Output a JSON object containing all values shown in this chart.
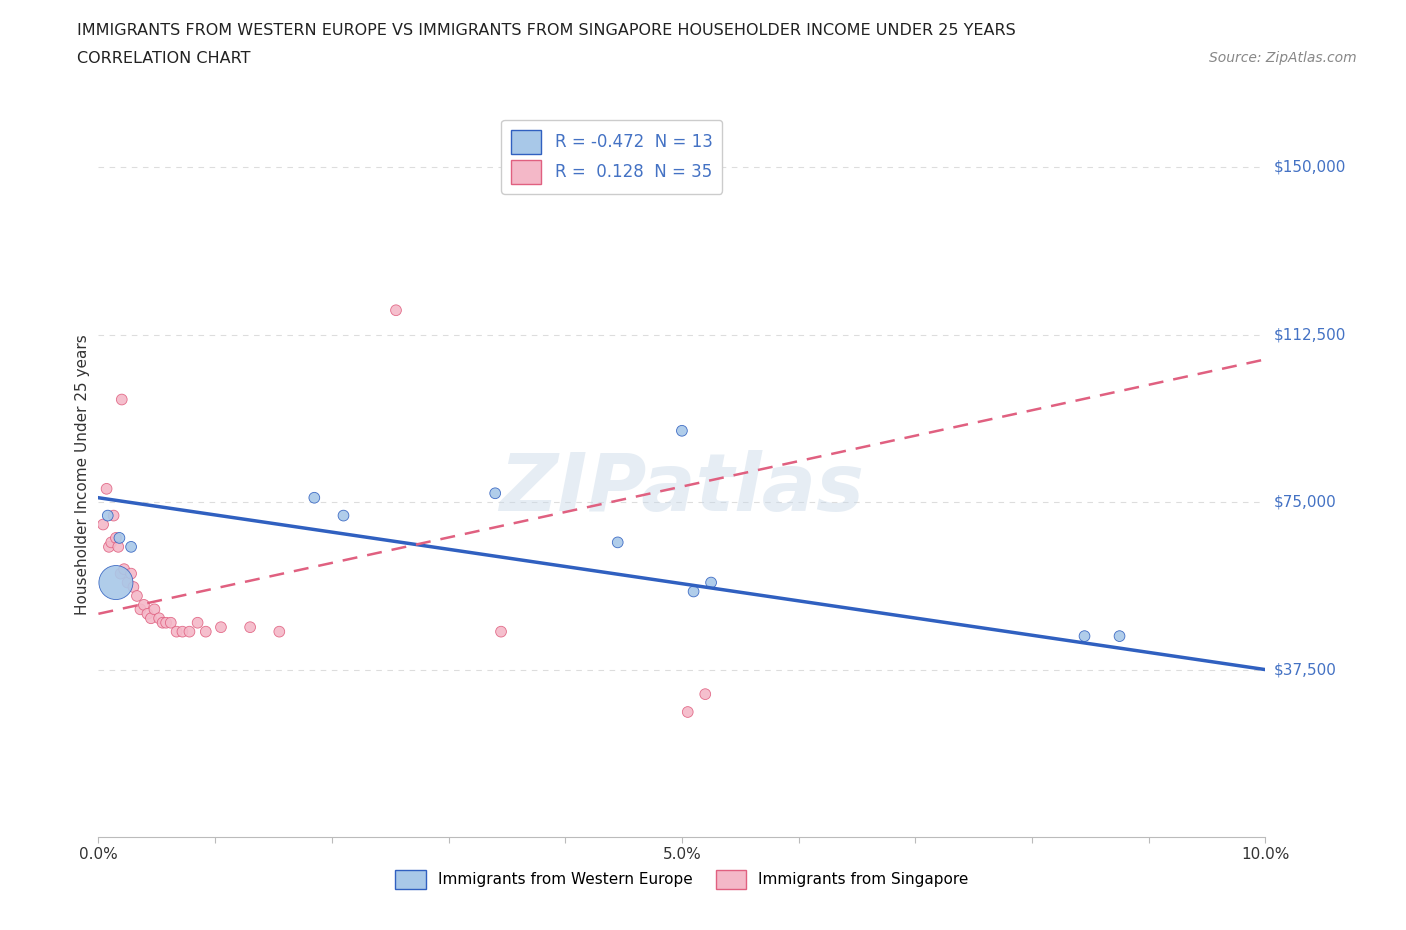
{
  "title_line1": "IMMIGRANTS FROM WESTERN EUROPE VS IMMIGRANTS FROM SINGAPORE HOUSEHOLDER INCOME UNDER 25 YEARS",
  "title_line2": "CORRELATION CHART",
  "source_text": "Source: ZipAtlas.com",
  "ylabel": "Householder Income Under 25 years",
  "xmin": 0.0,
  "xmax": 10.0,
  "ymin": 0,
  "ymax": 162500,
  "yticks": [
    0,
    37500,
    75000,
    112500,
    150000
  ],
  "ytick_labels": [
    "",
    "$37,500",
    "$75,000",
    "$112,500",
    "$150,000"
  ],
  "xtick_positions": [
    0,
    1,
    2,
    3,
    4,
    5,
    6,
    7,
    8,
    9,
    10
  ],
  "xtick_labels": [
    "0.0%",
    "",
    "",
    "",
    "",
    "5.0%",
    "",
    "",
    "",
    "",
    "10.0%"
  ],
  "grid_color": "#dddddd",
  "watermark": "ZIPatlas",
  "blue_color": "#a8c8e8",
  "pink_color": "#f4b8c8",
  "blue_line_color": "#3060c0",
  "pink_line_color": "#e06080",
  "R_blue": -0.472,
  "N_blue": 13,
  "R_pink": 0.128,
  "N_pink": 35,
  "blue_dots_x": [
    0.08,
    0.18,
    0.28,
    1.85,
    2.1,
    3.4,
    4.45,
    5.0,
    5.25,
    8.45,
    8.75,
    5.1,
    0.15
  ],
  "blue_dots_y": [
    72000,
    67000,
    65000,
    76000,
    72000,
    77000,
    66000,
    91000,
    57000,
    45000,
    45000,
    55000,
    57000
  ],
  "blue_dots_size": [
    60,
    60,
    60,
    60,
    60,
    60,
    60,
    60,
    60,
    60,
    60,
    60,
    600
  ],
  "pink_dots_x": [
    0.04,
    0.07,
    0.09,
    0.11,
    0.13,
    0.15,
    0.17,
    0.19,
    0.22,
    0.25,
    0.28,
    0.3,
    0.33,
    0.36,
    0.39,
    0.42,
    0.45,
    0.48,
    0.52,
    0.55,
    0.58,
    0.62,
    0.67,
    0.72,
    0.78,
    0.85,
    0.92,
    1.05,
    1.3,
    1.55,
    2.55,
    3.45,
    5.05,
    5.2,
    0.2
  ],
  "pink_dots_y": [
    70000,
    78000,
    65000,
    66000,
    72000,
    67000,
    65000,
    59000,
    60000,
    57000,
    59000,
    56000,
    54000,
    51000,
    52000,
    50000,
    49000,
    51000,
    49000,
    48000,
    48000,
    48000,
    46000,
    46000,
    46000,
    48000,
    46000,
    47000,
    47000,
    46000,
    118000,
    46000,
    28000,
    32000,
    98000
  ],
  "pink_dots_size": [
    60,
    60,
    60,
    60,
    60,
    60,
    60,
    60,
    60,
    60,
    60,
    60,
    60,
    60,
    60,
    60,
    60,
    60,
    60,
    60,
    60,
    60,
    60,
    60,
    60,
    60,
    60,
    60,
    60,
    60,
    60,
    60,
    60,
    60,
    60
  ],
  "stat_color": "#4472c4",
  "background_color": "#ffffff",
  "blue_trend_x0": 0.0,
  "blue_trend_y0": 76000,
  "blue_trend_x1": 10.0,
  "blue_trend_y1": 37500,
  "pink_trend_x0": 0.0,
  "pink_trend_y0": 50000,
  "pink_trend_x1": 10.0,
  "pink_trend_y1": 107000
}
